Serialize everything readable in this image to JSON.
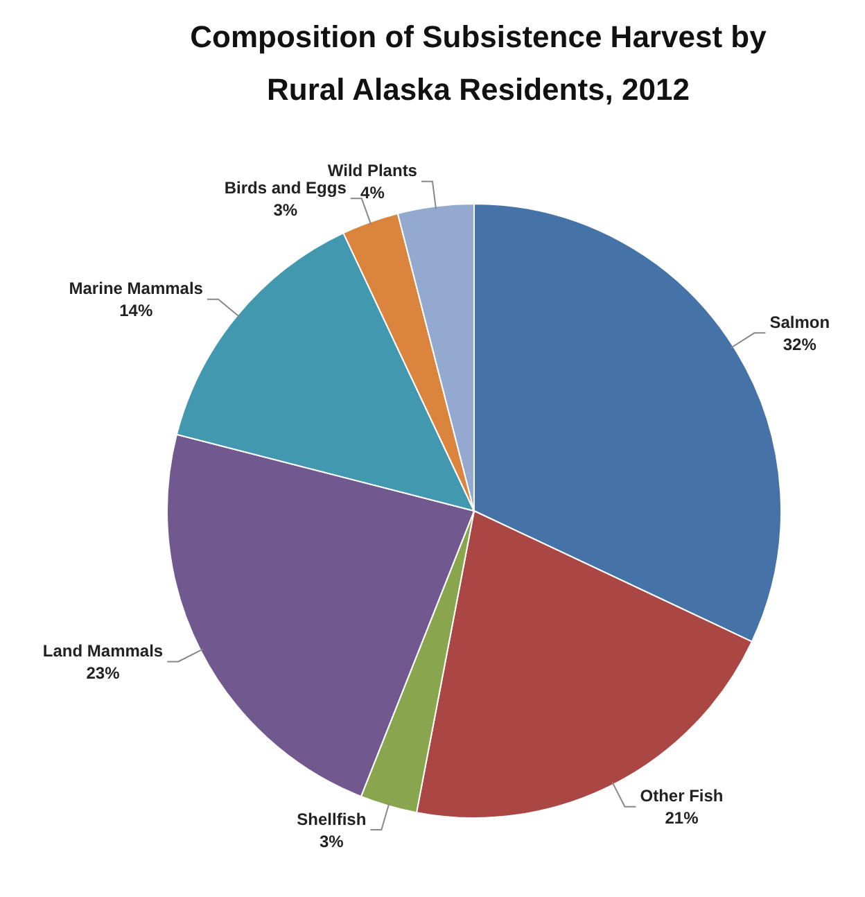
{
  "chart_data": {
    "type": "pie",
    "title": "Composition of Subsistence Harvest by Rural Alaska Residents, 2012",
    "categories": [
      "Salmon",
      "Other Fish",
      "Shellfish",
      "Land Mammals",
      "Marine Mammals",
      "Birds and Eggs",
      "Wild Plants"
    ],
    "values": [
      32,
      21,
      3,
      23,
      14,
      3,
      4
    ],
    "value_labels": [
      "32%",
      "21%",
      "3%",
      "23%",
      "14%",
      "3%",
      "4%"
    ],
    "colors": [
      "#4572a7",
      "#aa4643",
      "#89a54e",
      "#71588f",
      "#4198af",
      "#db843d",
      "#93a9cf"
    ],
    "legend": false
  }
}
